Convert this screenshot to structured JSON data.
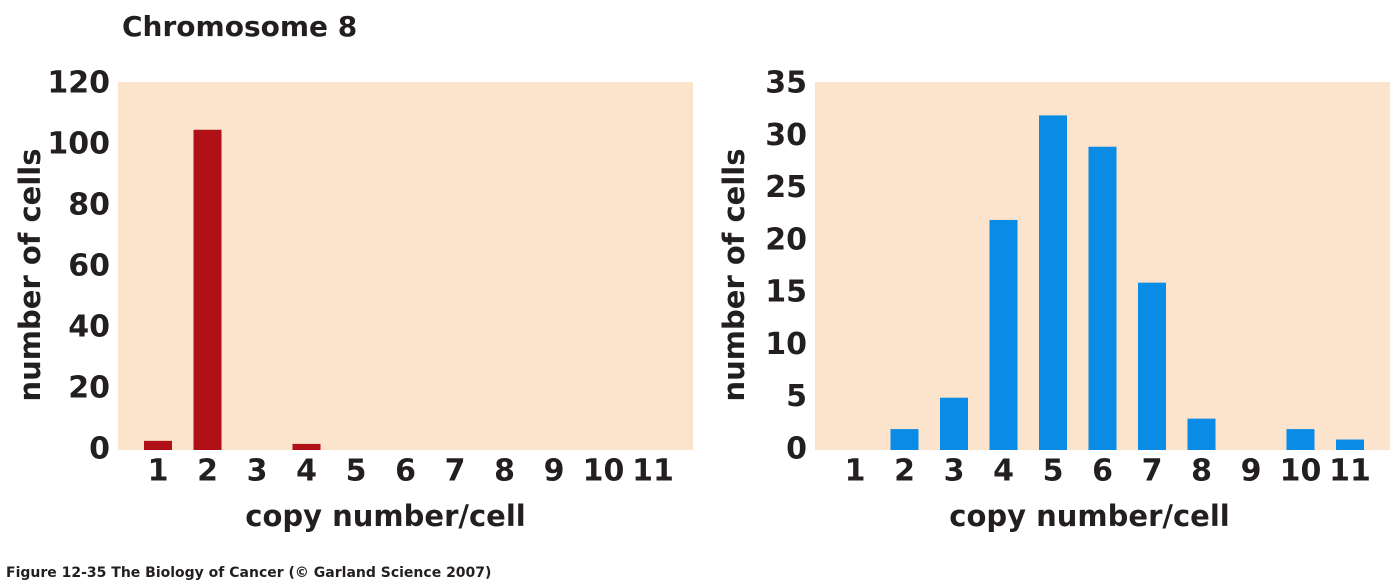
{
  "title": "Chromosome 8",
  "caption": "Figure 12-35  The Biology of Cancer (© Garland Science 2007)",
  "chart_data": [
    {
      "type": "bar",
      "categories": [
        "1",
        "2",
        "3",
        "4",
        "5",
        "6",
        "7",
        "8",
        "9",
        "10",
        "11"
      ],
      "values": [
        3,
        105,
        0,
        2,
        0,
        0,
        0,
        0,
        0,
        0,
        0
      ],
      "color": "#b01116",
      "xlabel": "copy number/cell",
      "ylabel": "number of cells",
      "ylim": [
        0,
        120
      ],
      "yticks": [
        0,
        20,
        40,
        60,
        80,
        100,
        120
      ],
      "background": "#fbe3cc"
    },
    {
      "type": "bar",
      "categories": [
        "1",
        "2",
        "3",
        "4",
        "5",
        "6",
        "7",
        "8",
        "9",
        "10",
        "11"
      ],
      "values": [
        0,
        2,
        5,
        22,
        32,
        29,
        16,
        3,
        0,
        2,
        1
      ],
      "color": "#0a8be6",
      "xlabel": "copy number/cell",
      "ylabel": "number of cells",
      "ylim": [
        0,
        35
      ],
      "yticks": [
        0,
        5,
        10,
        15,
        20,
        25,
        30,
        35
      ],
      "background": "#fbe3cc"
    }
  ]
}
